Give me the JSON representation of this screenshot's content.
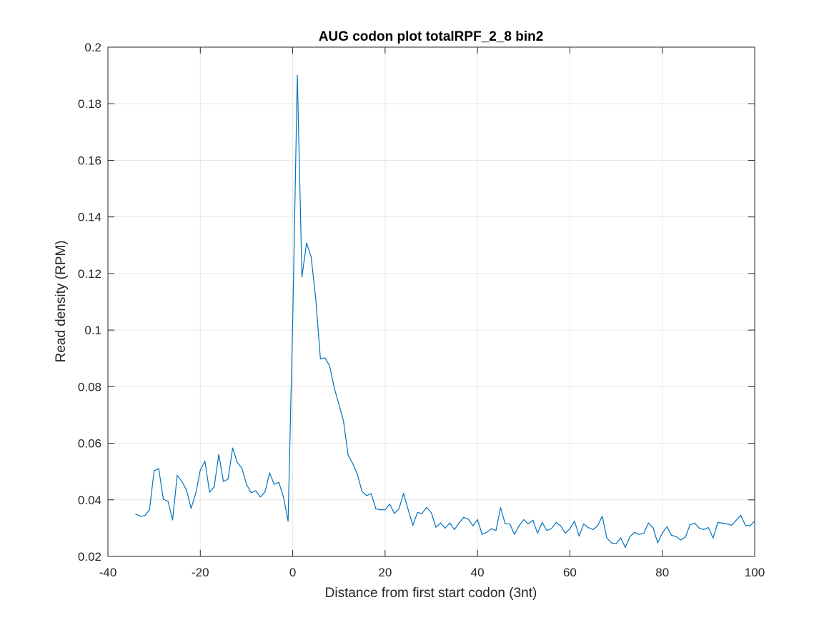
{
  "chart_data": {
    "type": "line",
    "title": "AUG codon plot totalRPF_2_8 bin2",
    "xlabel": "Distance from first start codon (3nt)",
    "ylabel": "Read density (RPM)",
    "xlim": [
      -40,
      100
    ],
    "ylim": [
      0.02,
      0.2
    ],
    "xticks": [
      -40,
      -20,
      0,
      20,
      40,
      60,
      80,
      100
    ],
    "xtick_labels": [
      "-40",
      "-20",
      "0",
      "20",
      "40",
      "60",
      "80",
      "100"
    ],
    "yticks": [
      0.02,
      0.04,
      0.06,
      0.08,
      0.1,
      0.12,
      0.14,
      0.16,
      0.18,
      0.2
    ],
    "ytick_labels": [
      "0.02",
      "0.04",
      "0.06",
      "0.08",
      "0.1",
      "0.12",
      "0.14",
      "0.16",
      "0.18",
      "0.2"
    ],
    "grid": true,
    "color": "#0072BD",
    "series": [
      {
        "x": [
          -34,
          -33,
          -32,
          -31,
          -30,
          -29,
          -28,
          -27,
          -26,
          -25,
          -24,
          -23,
          -22,
          -21,
          -20,
          -19,
          -18,
          -17,
          -16,
          -15,
          -14,
          -13,
          -12,
          -11,
          -10,
          -9,
          -8,
          -7,
          -6,
          -5,
          -4,
          -3,
          -2,
          -1,
          0,
          1,
          2,
          3,
          4,
          5,
          6,
          7,
          8,
          9,
          10,
          11,
          12,
          13,
          14,
          15,
          16,
          17,
          18,
          19,
          20,
          21,
          22,
          23,
          24,
          25,
          26,
          27,
          28,
          29,
          30,
          31,
          32,
          33,
          34,
          35,
          36,
          37,
          38,
          39,
          40,
          41,
          42,
          43,
          44,
          45,
          46,
          47,
          48,
          49,
          50,
          51,
          52,
          53,
          54,
          55,
          56,
          57,
          58,
          59,
          60,
          61,
          62,
          63,
          64,
          65,
          66,
          67,
          68,
          69,
          70,
          71,
          72,
          73,
          74,
          75,
          76,
          77,
          78,
          79,
          80,
          81,
          82,
          83,
          84,
          85,
          86,
          87,
          88,
          89,
          90,
          91,
          92,
          93,
          94,
          95,
          96,
          97,
          98,
          99,
          100
        ],
        "y": [
          0.035,
          0.0342,
          0.0344,
          0.0365,
          0.0503,
          0.051,
          0.0402,
          0.0395,
          0.0329,
          0.0487,
          0.0465,
          0.0435,
          0.037,
          0.0422,
          0.0505,
          0.0537,
          0.0427,
          0.0446,
          0.056,
          0.0465,
          0.0473,
          0.0583,
          0.0532,
          0.0512,
          0.0455,
          0.0425,
          0.0432,
          0.041,
          0.0428,
          0.0495,
          0.0455,
          0.0462,
          0.041,
          0.0325,
          0.103,
          0.19,
          0.1188,
          0.1308,
          0.1258,
          0.1108,
          0.0898,
          0.0902,
          0.0873,
          0.0795,
          0.0738,
          0.0678,
          0.0558,
          0.0528,
          0.049,
          0.043,
          0.0415,
          0.0422,
          0.0368,
          0.0365,
          0.0365,
          0.0385,
          0.0352,
          0.0368,
          0.0423,
          0.0365,
          0.031,
          0.0355,
          0.0352,
          0.0373,
          0.0355,
          0.0303,
          0.0318,
          0.03,
          0.0318,
          0.0295,
          0.0318,
          0.0338,
          0.0332,
          0.0308,
          0.033,
          0.0278,
          0.0285,
          0.0298,
          0.0292,
          0.0372,
          0.0315,
          0.0315,
          0.0278,
          0.0308,
          0.033,
          0.0315,
          0.0328,
          0.0282,
          0.032,
          0.0292,
          0.0298,
          0.032,
          0.0308,
          0.0282,
          0.0298,
          0.0325,
          0.0272,
          0.0315,
          0.0302,
          0.0295,
          0.0308,
          0.0342,
          0.0265,
          0.0248,
          0.0245,
          0.0265,
          0.0232,
          0.027,
          0.0285,
          0.0278,
          0.0282,
          0.0318,
          0.0302,
          0.0248,
          0.0282,
          0.0305,
          0.0275,
          0.027,
          0.0258,
          0.0268,
          0.0312,
          0.0318,
          0.03,
          0.0295,
          0.0302,
          0.0265,
          0.032,
          0.0318,
          0.0315,
          0.031,
          0.0328,
          0.0345,
          0.031,
          0.0308,
          0.0325
        ]
      }
    ]
  }
}
